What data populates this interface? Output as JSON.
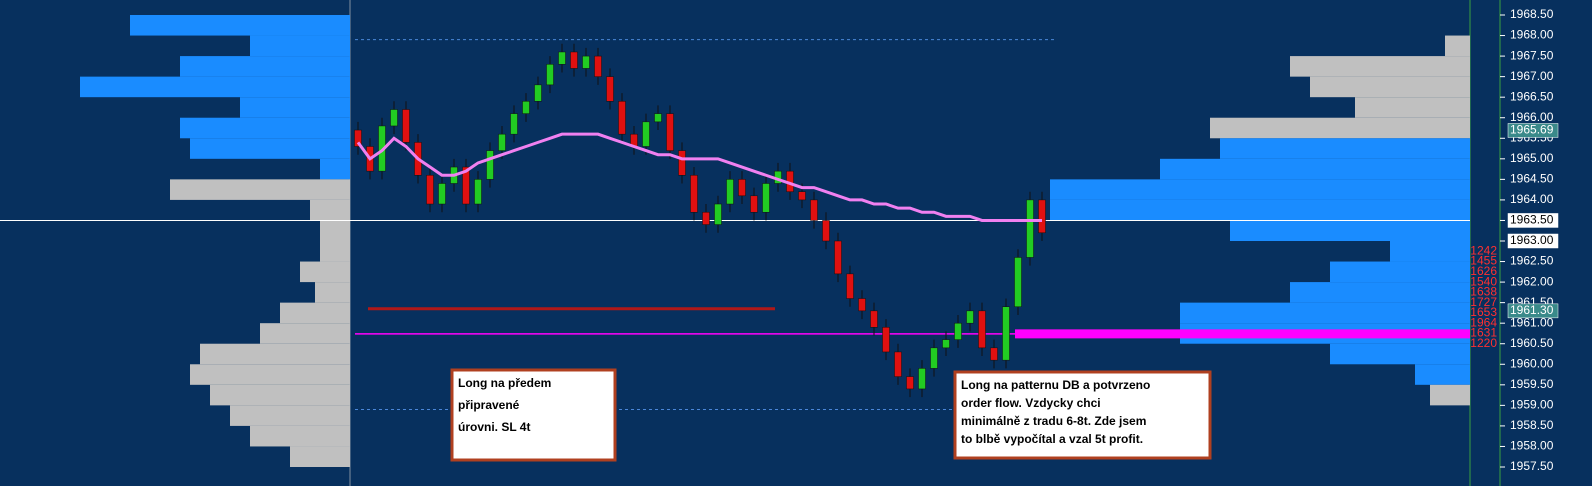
{
  "chart_data": {
    "type": "candlestick",
    "ylim": [
      1957.5,
      1968.5
    ],
    "yticks": [
      {
        "value": 1957.5,
        "label": "1957.50"
      },
      {
        "value": 1958,
        "label": "1958.00"
      },
      {
        "value": 1958.5,
        "label": "1958.50"
      },
      {
        "value": 1959,
        "label": "1959.00"
      },
      {
        "value": 1959.5,
        "label": "1959.50"
      },
      {
        "value": 1960,
        "label": "1960.00"
      },
      {
        "value": 1960.5,
        "label": "1960.50"
      },
      {
        "value": 1961,
        "label": "1961.00"
      },
      {
        "value": 1961.5,
        "label": "1961.50"
      },
      {
        "value": 1962,
        "label": "1962.00"
      },
      {
        "value": 1962.5,
        "label": "1962.50"
      },
      {
        "value": 1963,
        "label": "1963.00"
      },
      {
        "value": 1963.5,
        "label": "1963.50"
      },
      {
        "value": 1964,
        "label": "1964.00"
      },
      {
        "value": 1964.5,
        "label": "1964.50"
      },
      {
        "value": 1965,
        "label": "1965.00"
      },
      {
        "value": 1965.5,
        "label": "1965.50"
      },
      {
        "value": 1966,
        "label": "1966.00"
      },
      {
        "value": 1966.5,
        "label": "1966.50"
      },
      {
        "value": 1967,
        "label": "1967.00"
      },
      {
        "value": 1967.5,
        "label": "1967.50"
      },
      {
        "value": 1968,
        "label": "1968.00"
      },
      {
        "value": 1968.5,
        "label": "1968.50"
      }
    ],
    "up_color": "#22cc22",
    "down_color": "#e01010",
    "open": [
      1965.7,
      1965.3,
      1964.7,
      1965.8,
      1966.2,
      1965.4,
      1964.6,
      1963.9,
      1964.4,
      1964.8,
      1963.9,
      1964.5,
      1965.2,
      1965.6,
      1966.1,
      1966.4,
      1966.8,
      1967.3,
      1967.6,
      1967.2,
      1967.5,
      1967.0,
      1966.4,
      1965.6,
      1965.3,
      1965.9,
      1966.1,
      1965.2,
      1964.6,
      1963.7,
      1963.4,
      1963.9,
      1964.5,
      1964.1,
      1963.7,
      1964.4,
      1964.7,
      1964.2,
      1964.0,
      1963.5,
      1963.0,
      1962.2,
      1961.6,
      1961.3,
      1960.9,
      1960.3,
      1959.7,
      1959.4,
      1959.9,
      1960.4,
      1960.6,
      1961.0,
      1961.3,
      1960.4,
      1960.1,
      1961.4,
      1962.6,
      1964.0
    ],
    "high": [
      1965.9,
      1965.5,
      1966.0,
      1966.4,
      1966.4,
      1965.6,
      1964.8,
      1964.6,
      1965.0,
      1965.0,
      1964.7,
      1965.4,
      1965.8,
      1966.3,
      1966.6,
      1967.0,
      1967.5,
      1967.8,
      1967.8,
      1967.7,
      1967.7,
      1967.2,
      1966.6,
      1965.8,
      1966.1,
      1966.3,
      1966.3,
      1965.4,
      1964.8,
      1963.9,
      1964.1,
      1964.7,
      1964.7,
      1964.3,
      1964.6,
      1964.9,
      1964.9,
      1964.4,
      1964.2,
      1963.7,
      1963.2,
      1962.4,
      1961.8,
      1961.5,
      1961.1,
      1960.5,
      1959.9,
      1960.1,
      1960.6,
      1960.8,
      1961.2,
      1961.5,
      1961.5,
      1960.6,
      1961.6,
      1962.8,
      1964.2,
      1964.2
    ],
    "low": [
      1965.1,
      1964.5,
      1964.5,
      1965.6,
      1965.2,
      1964.4,
      1963.7,
      1963.7,
      1964.2,
      1963.7,
      1963.7,
      1964.3,
      1965.0,
      1965.4,
      1965.9,
      1966.2,
      1966.6,
      1967.1,
      1967.0,
      1967.0,
      1966.8,
      1966.2,
      1965.4,
      1965.1,
      1965.1,
      1965.7,
      1965.0,
      1964.4,
      1963.5,
      1963.2,
      1963.2,
      1963.7,
      1963.9,
      1963.5,
      1963.5,
      1964.2,
      1964.0,
      1963.8,
      1963.3,
      1962.8,
      1962.0,
      1961.4,
      1961.1,
      1960.7,
      1960.1,
      1959.5,
      1959.2,
      1959.2,
      1959.7,
      1960.2,
      1960.4,
      1960.8,
      1960.2,
      1959.9,
      1959.9,
      1961.2,
      1962.4,
      1963.0
    ],
    "close": [
      1965.3,
      1964.7,
      1965.8,
      1966.2,
      1965.4,
      1964.6,
      1963.9,
      1964.4,
      1964.8,
      1963.9,
      1964.5,
      1965.2,
      1965.6,
      1966.1,
      1966.4,
      1966.8,
      1967.3,
      1967.6,
      1967.2,
      1967.5,
      1967.0,
      1966.4,
      1965.6,
      1965.3,
      1965.9,
      1966.1,
      1965.2,
      1964.6,
      1963.7,
      1963.4,
      1963.9,
      1964.5,
      1964.1,
      1963.7,
      1964.4,
      1964.7,
      1964.2,
      1964.0,
      1963.5,
      1963.0,
      1962.2,
      1961.6,
      1961.3,
      1960.9,
      1960.3,
      1959.7,
      1959.4,
      1959.9,
      1960.4,
      1960.6,
      1961.0,
      1961.3,
      1960.4,
      1960.1,
      1961.4,
      1962.6,
      1964.0,
      1963.2
    ],
    "ma_color": "#f080f0",
    "ma_values": [
      1965.4,
      1965.0,
      1965.2,
      1965.5,
      1965.3,
      1965.0,
      1964.8,
      1964.6,
      1964.6,
      1964.7,
      1964.9,
      1965.0,
      1965.1,
      1965.2,
      1965.3,
      1965.4,
      1965.5,
      1965.6,
      1965.6,
      1965.6,
      1965.6,
      1965.5,
      1965.4,
      1965.3,
      1965.2,
      1965.1,
      1965.1,
      1965.0,
      1965.0,
      1965.0,
      1965.0,
      1964.9,
      1964.8,
      1964.7,
      1964.6,
      1964.5,
      1964.4,
      1964.3,
      1964.3,
      1964.2,
      1964.1,
      1964.0,
      1964.0,
      1963.9,
      1963.9,
      1963.8,
      1963.8,
      1963.7,
      1963.7,
      1963.6,
      1963.6,
      1963.6,
      1963.5,
      1963.5,
      1963.5,
      1963.5,
      1963.5,
      1963.5
    ],
    "levels": [
      {
        "value": 1963.5,
        "color": "#ffffff"
      },
      {
        "value": 1960.74,
        "color": "#ff00ff"
      },
      {
        "value": 1961.35,
        "color": "#b01818"
      },
      {
        "value": 1967.9,
        "color": "#4a86d8"
      },
      {
        "value": 1958.9,
        "color": "#4a86d8"
      }
    ],
    "left_profile": {
      "prices": [
        1968.25,
        1967.75,
        1967.25,
        1966.75,
        1966.25,
        1965.75,
        1965.25,
        1964.75,
        1964.25,
        1963.75,
        1963.25,
        1962.75,
        1962.25,
        1961.75,
        1961.25,
        1960.75,
        1960.25,
        1959.75,
        1959.25,
        1958.75,
        1958.25,
        1957.75
      ],
      "values": [
        220,
        100,
        170,
        270,
        110,
        170,
        160,
        30,
        180,
        40,
        30,
        30,
        50,
        35,
        70,
        90,
        150,
        160,
        140,
        120,
        100,
        60
      ],
      "colors": [
        "#1a8cff",
        "#1a8cff",
        "#1a8cff",
        "#1a8cff",
        "#1a8cff",
        "#1a8cff",
        "#1a8cff",
        "#1a8cff",
        "#c0c0c0",
        "#c0c0c0",
        "#c0c0c0",
        "#c0c0c0",
        "#c0c0c0",
        "#c0c0c0",
        "#c0c0c0",
        "#c0c0c0",
        "#c0c0c0",
        "#c0c0c0",
        "#c0c0c0",
        "#c0c0c0",
        "#c0c0c0",
        "#c0c0c0"
      ]
    },
    "right_profile": {
      "prices": [
        1967.75,
        1967.25,
        1966.75,
        1966.25,
        1965.75,
        1965.25,
        1964.75,
        1964.25,
        1963.75,
        1963.25,
        1962.75,
        1962.25,
        1961.75,
        1961.25,
        1960.75,
        1960.25,
        1959.75,
        1959.25
      ],
      "values": [
        25,
        180,
        160,
        115,
        260,
        250,
        310,
        420,
        420,
        240,
        80,
        140,
        180,
        290,
        290,
        140,
        55,
        40
      ],
      "colors": [
        "#c0c0c0",
        "#c0c0c0",
        "#c0c0c0",
        "#c0c0c0",
        "#c0c0c0",
        "#1a8cff",
        "#1a8cff",
        "#1a8cff",
        "#1a8cff",
        "#1a8cff",
        "#1a8cff",
        "#1a8cff",
        "#1a8cff",
        "#1a8cff",
        "#1a8cff",
        "#1a8cff",
        "#1a8cff",
        "#c0c0c0"
      ]
    },
    "volume_labels": {
      "prices": [
        1962.75,
        1962.5,
        1962.25,
        1962.0,
        1961.75,
        1961.5,
        1961.25,
        1961.0,
        1960.75,
        1960.5
      ],
      "values": [
        1242,
        1455,
        1626,
        1540,
        1638,
        1727,
        1653,
        1964,
        1631,
        1220
      ]
    },
    "price_labels": [
      {
        "value": 1965.69,
        "label": "1965.69",
        "color": "#3a8a8a"
      },
      {
        "value": 1963.5,
        "label": "1963.50",
        "color": "#ffffff"
      },
      {
        "value": 1963.0,
        "label": "1963.00",
        "color": "#ffffff"
      },
      {
        "value": 1961.3,
        "label": "1961.30",
        "color": "#3a8a8a"
      }
    ],
    "annotations": [
      {
        "lines": [
          "Long na předem",
          "připravené",
          "úrovni. SL 4t"
        ]
      },
      {
        "lines": [
          "Long na patternu DB a potvrzeno",
          "order flow. Vzdycky chci",
          "minimálně z tradu 6-8t. Zde jsem",
          "to blbě vypočítal a vzal 5t profit."
        ]
      }
    ]
  }
}
